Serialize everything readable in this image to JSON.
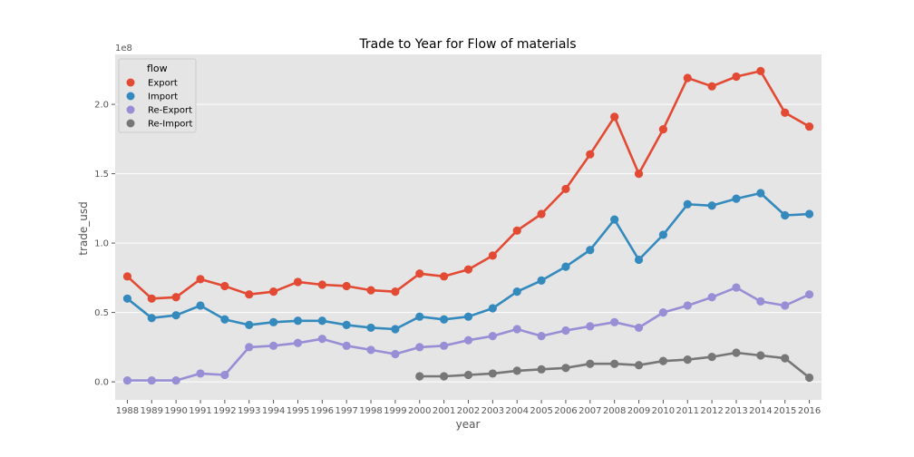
{
  "chart_data": {
    "type": "line",
    "title": "Trade to Year for Flow of materials",
    "xlabel": "year",
    "ylabel": "trade_usd",
    "y_offset_label": "1e8",
    "ylim": [
      -0.13,
      2.36
    ],
    "yticks": [
      0.0,
      0.5,
      1.0,
      1.5,
      2.0
    ],
    "ytick_labels": [
      "0.0",
      "0.5",
      "1.0",
      "1.5",
      "2.0"
    ],
    "grid": true,
    "legend": {
      "title": "flow",
      "position": "top-left"
    },
    "categories": [
      "1988",
      "1989",
      "1990",
      "1991",
      "1992",
      "1993",
      "1994",
      "1995",
      "1996",
      "1997",
      "1998",
      "1999",
      "2000",
      "2001",
      "2002",
      "2003",
      "2004",
      "2005",
      "2006",
      "2007",
      "2008",
      "2009",
      "2010",
      "2011",
      "2012",
      "2013",
      "2014",
      "2015",
      "2016"
    ],
    "series": [
      {
        "name": "Export",
        "color": "#E24A33",
        "values": [
          0.76,
          0.6,
          0.61,
          0.74,
          0.69,
          0.63,
          0.65,
          0.72,
          0.7,
          0.69,
          0.66,
          0.65,
          0.78,
          0.76,
          0.81,
          0.91,
          1.09,
          1.21,
          1.39,
          1.64,
          1.91,
          1.5,
          1.82,
          2.19,
          2.13,
          2.2,
          2.24,
          1.94,
          1.84
        ]
      },
      {
        "name": "Import",
        "color": "#348ABD",
        "values": [
          0.6,
          0.46,
          0.48,
          0.55,
          0.45,
          0.41,
          0.43,
          0.44,
          0.44,
          0.41,
          0.39,
          0.38,
          0.47,
          0.45,
          0.47,
          0.53,
          0.65,
          0.73,
          0.83,
          0.95,
          1.17,
          0.88,
          1.06,
          1.28,
          1.27,
          1.32,
          1.36,
          1.2,
          1.21
        ]
      },
      {
        "name": "Re-Export",
        "color": "#988ED5",
        "values": [
          0.01,
          0.01,
          0.01,
          0.06,
          0.05,
          0.25,
          0.26,
          0.28,
          0.31,
          0.26,
          0.23,
          0.2,
          0.25,
          0.26,
          0.3,
          0.33,
          0.38,
          0.33,
          0.37,
          0.4,
          0.43,
          0.39,
          0.5,
          0.55,
          0.61,
          0.68,
          0.58,
          0.55,
          0.63
        ]
      },
      {
        "name": "Re-Import",
        "color": "#777777",
        "values": [
          null,
          null,
          null,
          null,
          null,
          null,
          null,
          null,
          null,
          null,
          null,
          null,
          0.04,
          0.04,
          0.05,
          0.06,
          0.08,
          0.09,
          0.1,
          0.13,
          0.13,
          0.12,
          0.15,
          0.16,
          0.18,
          0.21,
          0.19,
          0.17,
          0.03
        ]
      }
    ]
  }
}
